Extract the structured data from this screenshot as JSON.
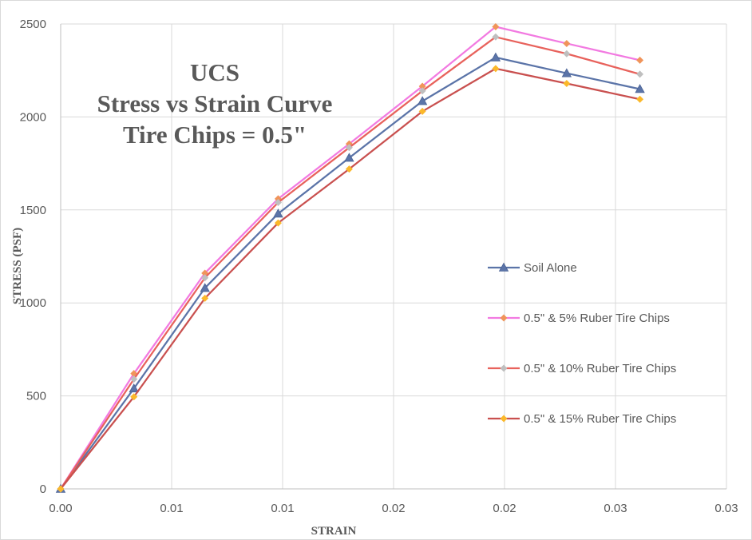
{
  "chart_data": {
    "type": "line",
    "title_lines": [
      "UCS",
      "Stress vs Strain Curve",
      "Tire Chips = 0.5\""
    ],
    "xlabel": "STRAIN",
    "ylabel": "STRESS (PSF)",
    "xlim": [
      0,
      0.03
    ],
    "ylim": [
      0,
      2500
    ],
    "x_tick_values": [
      0,
      0.005,
      0.01,
      0.015,
      0.02,
      0.025,
      0.03
    ],
    "x_tick_labels": [
      "0.00",
      "0.01",
      "0.01",
      "0.02",
      "0.02",
      "0.03",
      "0.03"
    ],
    "y_ticks": [
      0,
      500,
      1000,
      1500,
      2000,
      2500
    ],
    "grid": true,
    "legend_position": "right",
    "x": [
      0,
      0.0033,
      0.0065,
      0.0098,
      0.013,
      0.0163,
      0.0196,
      0.0228,
      0.0261
    ],
    "series": [
      {
        "name": "Soil Alone",
        "color": "#5b74a8",
        "marker": "triangle",
        "values": [
          0,
          540,
          1080,
          1480,
          1780,
          2085,
          2320,
          2235,
          2150
        ]
      },
      {
        "name": "0.5\" & 5% Ruber Tire Chips",
        "color": "#f27ae1",
        "marker_color": "#f0945a",
        "marker": "diamond",
        "values": [
          0,
          620,
          1160,
          1560,
          1855,
          2165,
          2485,
          2395,
          2305
        ]
      },
      {
        "name": "0.5\" & 10% Ruber Tire Chips",
        "color": "#e8625c",
        "marker_color": "#bfbfbf",
        "marker": "diamond",
        "values": [
          0,
          590,
          1135,
          1540,
          1835,
          2140,
          2430,
          2340,
          2230
        ]
      },
      {
        "name": "0.5\" & 15% Ruber Tire Chips",
        "color": "#c9504f",
        "marker_color": "#fbb82a",
        "marker": "diamond",
        "values": [
          0,
          495,
          1025,
          1430,
          1720,
          2030,
          2260,
          2180,
          2095
        ]
      }
    ]
  }
}
